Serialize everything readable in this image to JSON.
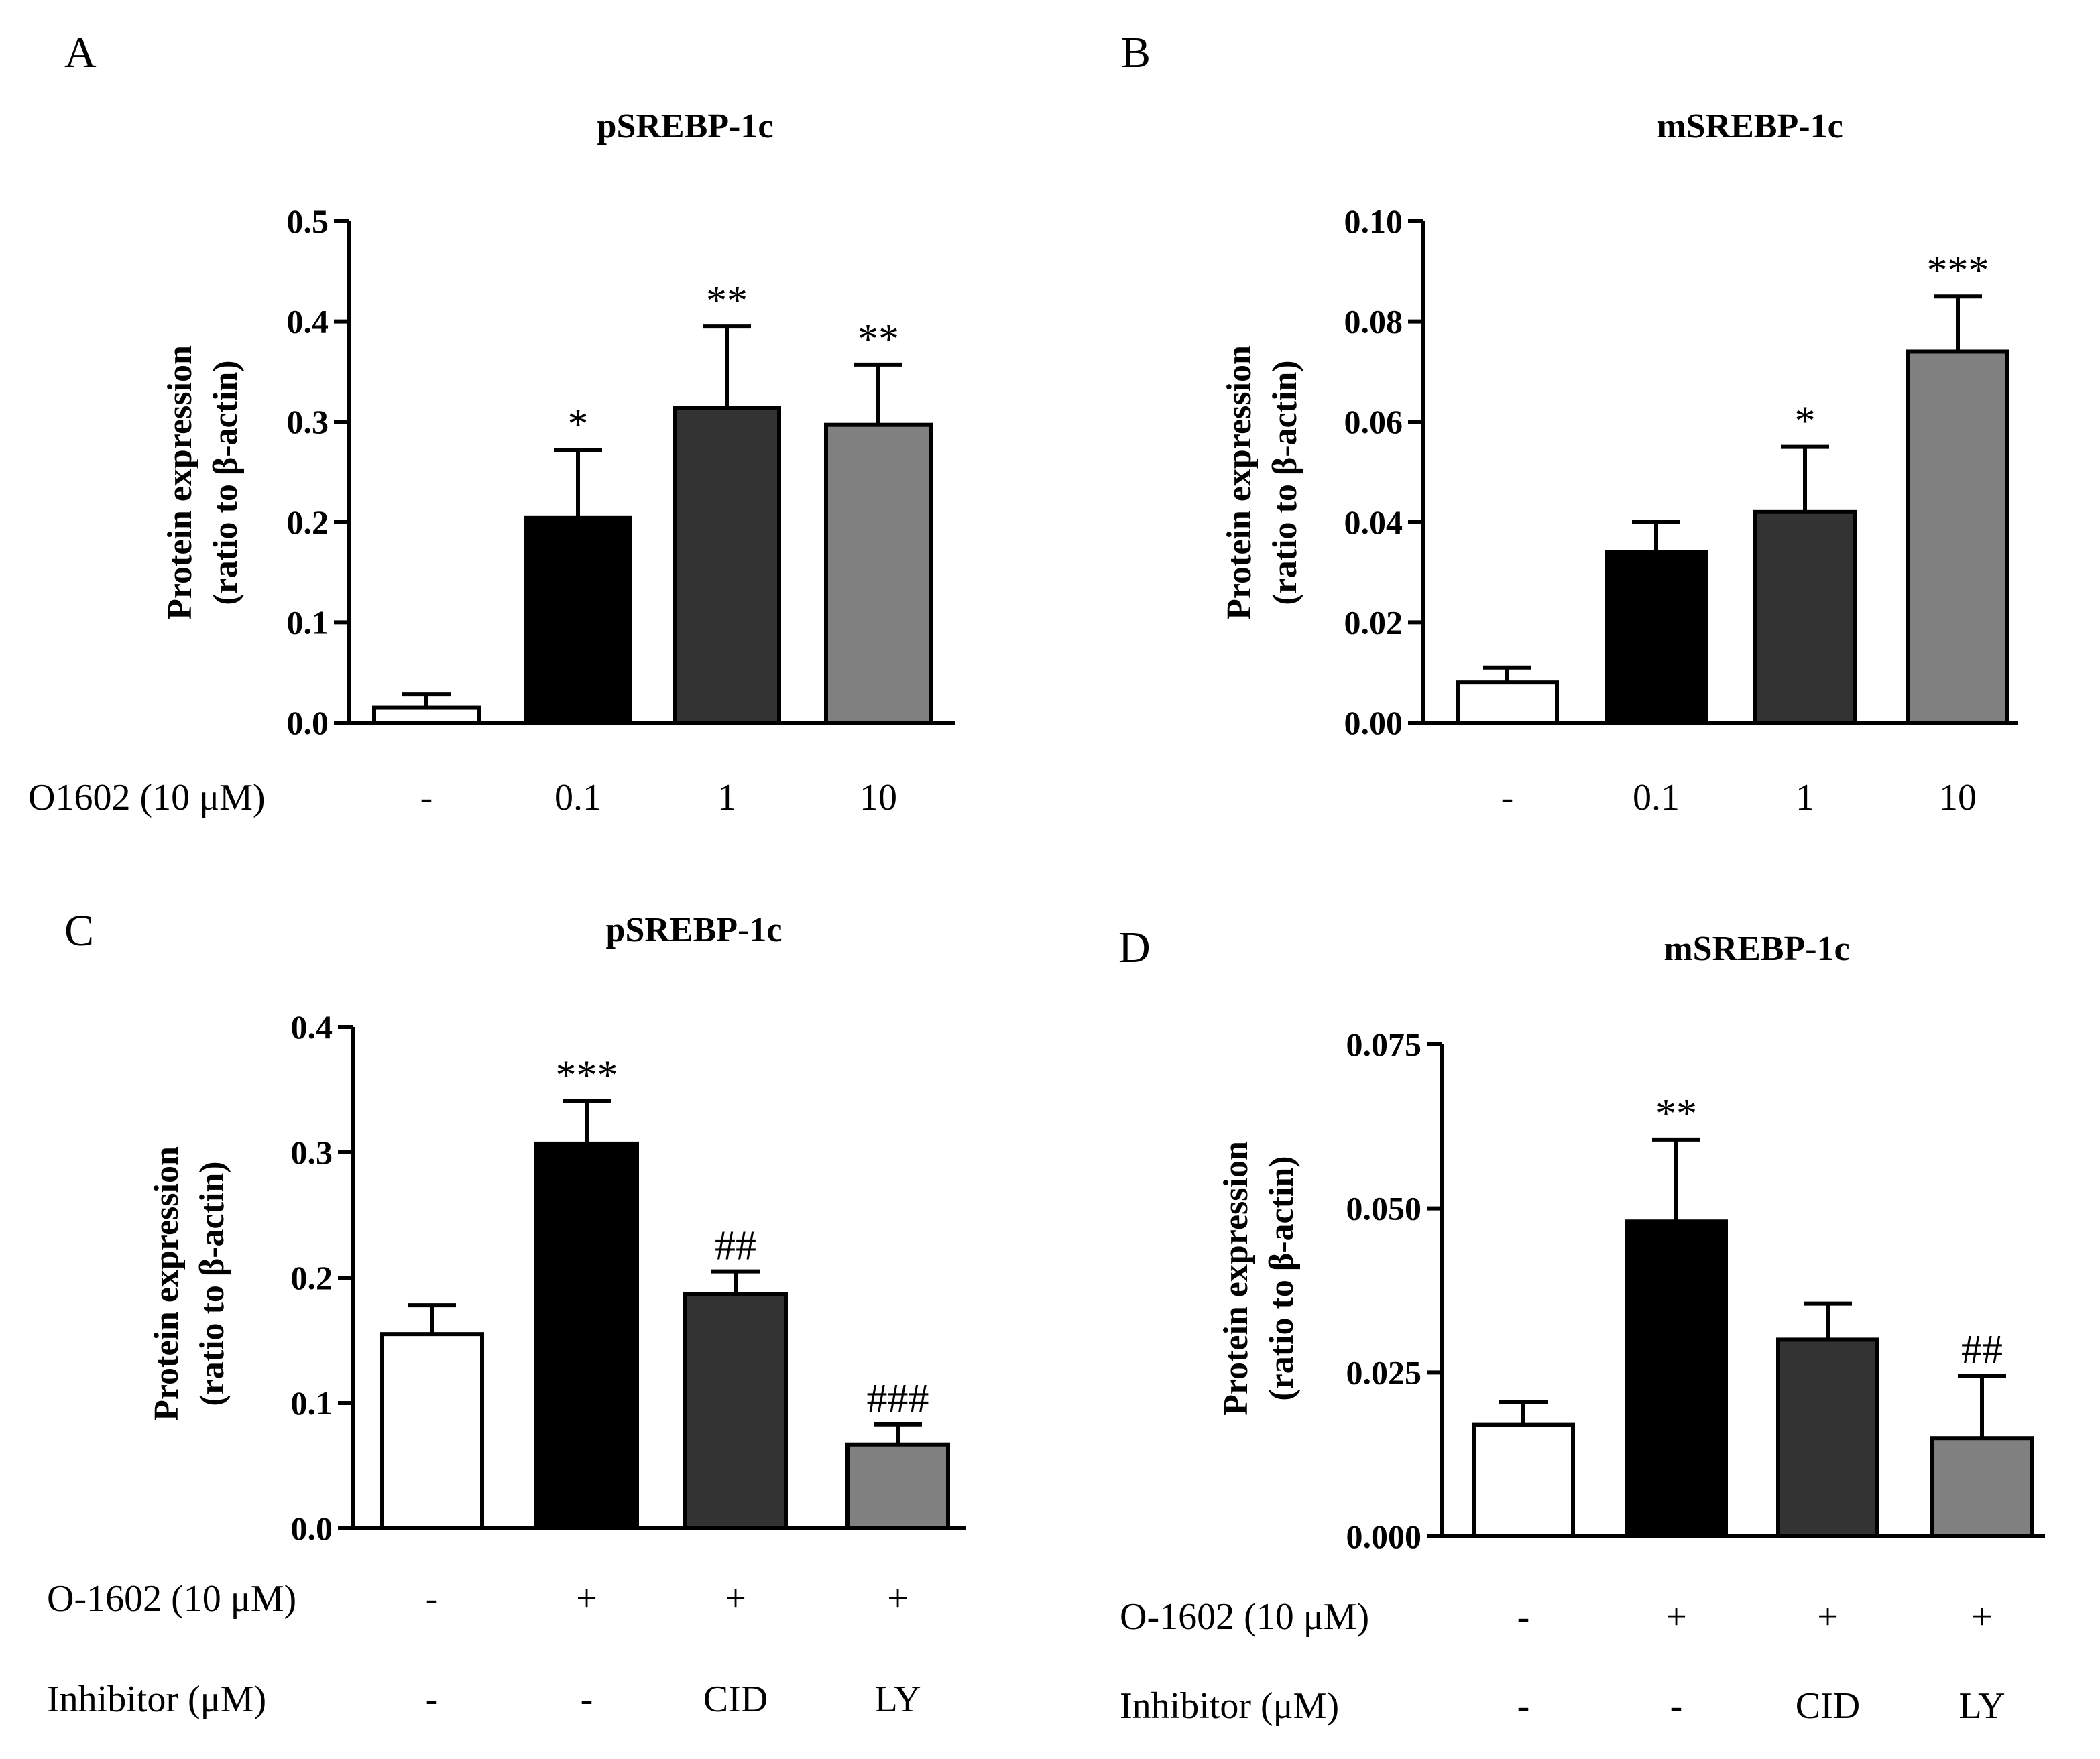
{
  "chart_data": [
    {
      "panel": "A",
      "type": "bar",
      "title": "pSREBP-1c",
      "ylabel_lines": [
        "Protein expression",
        "(ratio to β-actin)"
      ],
      "ylim": [
        0,
        0.5
      ],
      "yticks": [
        "0.0",
        "0.1",
        "0.2",
        "0.3",
        "0.4",
        "0.5"
      ],
      "row_labels": [
        "O1602 (10 μM)"
      ],
      "categories": [
        [
          "-"
        ],
        [
          "0.1"
        ],
        [
          "1"
        ],
        [
          "10"
        ]
      ],
      "values": [
        0.015,
        0.204,
        0.314,
        0.297
      ],
      "errors": [
        0.013,
        0.068,
        0.081,
        0.06
      ],
      "significance": [
        "",
        "*",
        "**",
        "**"
      ],
      "bar_colors": [
        "#ffffff",
        "#000000",
        "#333333",
        "#808080"
      ]
    },
    {
      "panel": "B",
      "type": "bar",
      "title": "mSREBP-1c",
      "ylabel_lines": [
        "Protein expression",
        "(ratio to β-actin)"
      ],
      "ylim": [
        0,
        0.1
      ],
      "yticks": [
        "0.00",
        "0.02",
        "0.04",
        "0.06",
        "0.08",
        "0.10"
      ],
      "row_labels": [
        ""
      ],
      "categories": [
        [
          "-"
        ],
        [
          "0.1"
        ],
        [
          "1"
        ],
        [
          "10"
        ]
      ],
      "values": [
        0.008,
        0.034,
        0.042,
        0.074
      ],
      "errors": [
        0.003,
        0.006,
        0.013,
        0.011
      ],
      "significance": [
        "",
        "",
        "*",
        "***"
      ],
      "bar_colors": [
        "#ffffff",
        "#000000",
        "#333333",
        "#808080"
      ]
    },
    {
      "panel": "C",
      "type": "bar",
      "title": "pSREBP-1c",
      "ylabel_lines": [
        "Protein expression",
        "(ratio to β-actin)"
      ],
      "ylim": [
        0,
        0.4
      ],
      "yticks": [
        "0.0",
        "0.1",
        "0.2",
        "0.3",
        "0.4"
      ],
      "row_labels": [
        "O-1602 (10 μM)",
        "Inhibitor (μM)"
      ],
      "categories": [
        [
          "-",
          "-"
        ],
        [
          "+",
          "-"
        ],
        [
          "+",
          "CID"
        ],
        [
          "+",
          "LY"
        ]
      ],
      "values": [
        0.155,
        0.307,
        0.187,
        0.067
      ],
      "errors": [
        0.023,
        0.034,
        0.018,
        0.016
      ],
      "significance": [
        "",
        "***",
        "##",
        "###"
      ],
      "bar_colors": [
        "#ffffff",
        "#000000",
        "#333333",
        "#808080"
      ]
    },
    {
      "panel": "D",
      "type": "bar",
      "title": "mSREBP-1c",
      "ylabel_lines": [
        "Protein expression",
        "(ratio to β-actin)"
      ],
      "ylim": [
        0,
        0.075
      ],
      "yticks": [
        "0.000",
        "0.025",
        "0.050",
        "0.075"
      ],
      "row_labels": [
        "O-1602 (10 μM)",
        "Inhibitor (μM)"
      ],
      "categories": [
        [
          "-",
          "-"
        ],
        [
          "+",
          "-"
        ],
        [
          "+",
          "CID"
        ],
        [
          "+",
          "LY"
        ]
      ],
      "values": [
        0.017,
        0.048,
        0.03,
        0.015
      ],
      "errors": [
        0.0035,
        0.0125,
        0.0055,
        0.0095
      ],
      "significance": [
        "",
        "**",
        "",
        "##"
      ],
      "bar_colors": [
        "#ffffff",
        "#000000",
        "#333333",
        "#808080"
      ]
    }
  ]
}
